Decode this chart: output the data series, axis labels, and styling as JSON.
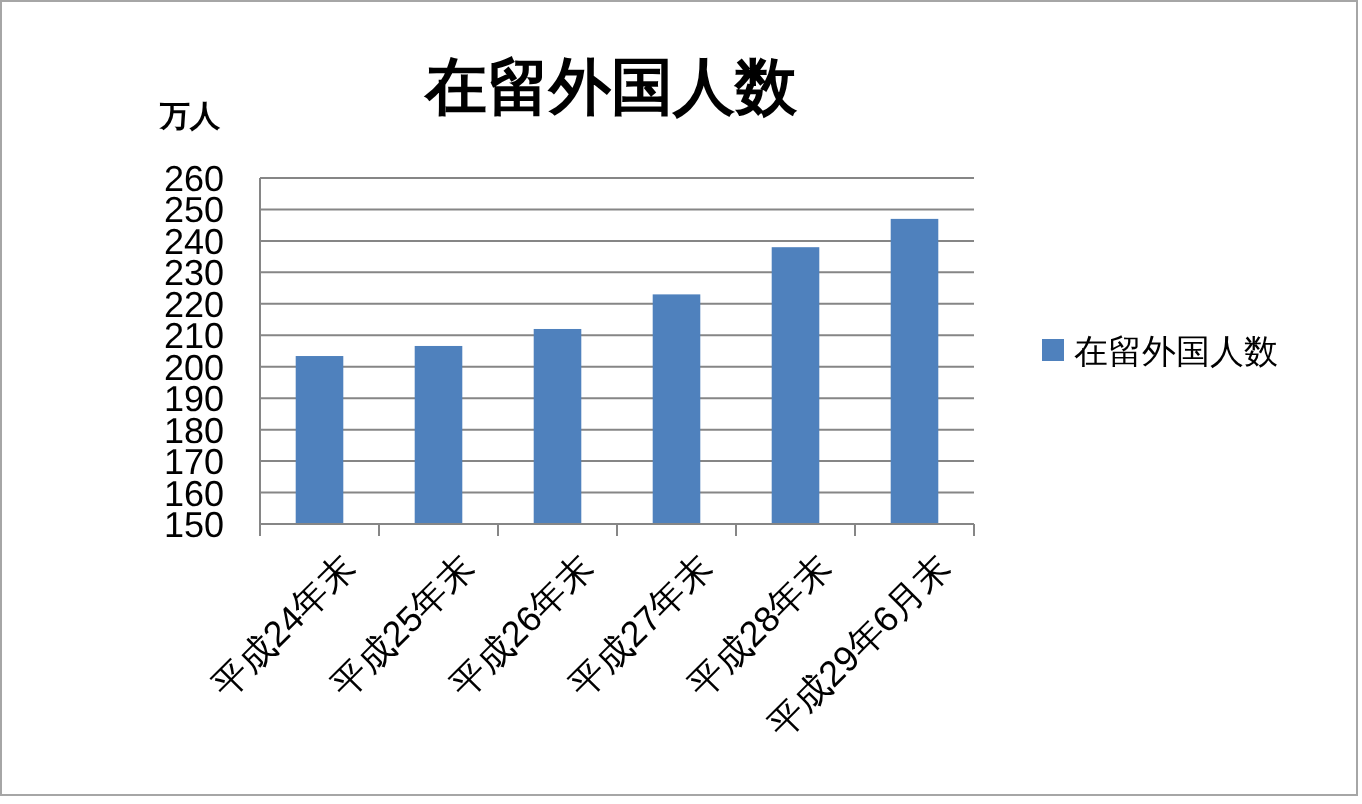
{
  "chart_data": {
    "type": "bar",
    "title": "在留外国人数",
    "ylabel": "万人",
    "categories": [
      "平成24年末",
      "平成25年末",
      "平成26年末",
      "平成27年末",
      "平成28年末",
      "平成29年6月末"
    ],
    "series": [
      {
        "name": "在留外国人数",
        "color": "#4f81bd",
        "values": [
          203.4,
          206.6,
          212,
          223,
          238,
          247
        ]
      }
    ],
    "ylim": [
      150,
      260
    ],
    "yticks": [
      150,
      160,
      170,
      180,
      190,
      200,
      210,
      220,
      230,
      240,
      250,
      260
    ],
    "grid": "y",
    "legend": "right"
  }
}
